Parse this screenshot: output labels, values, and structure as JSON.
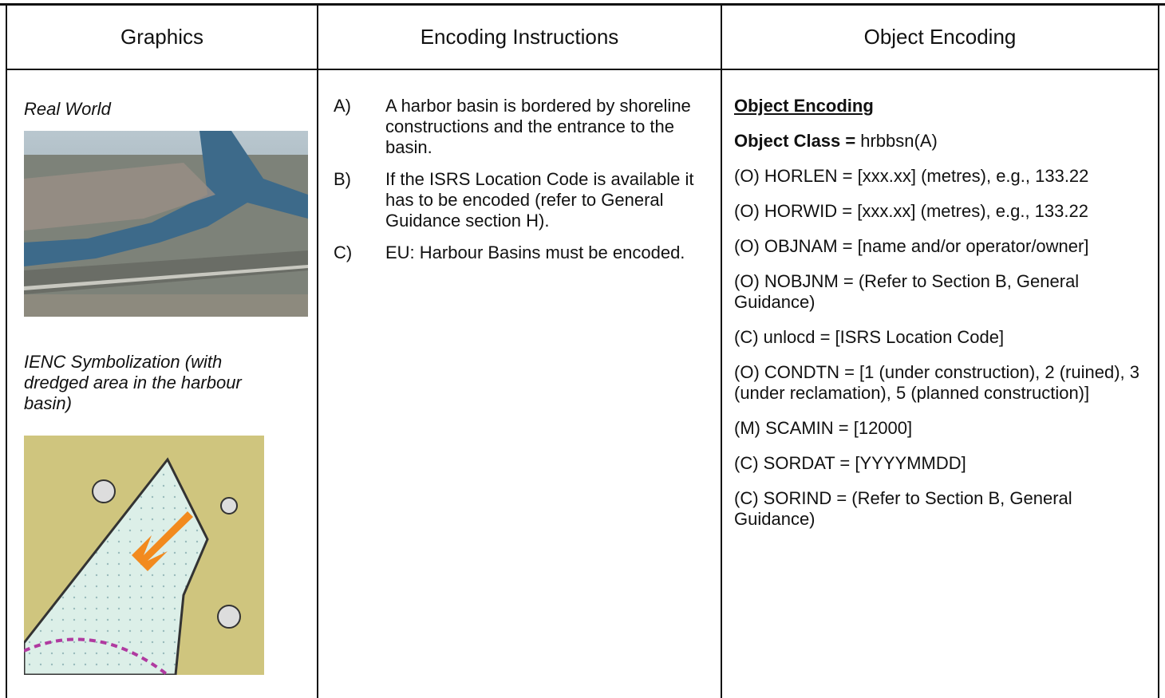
{
  "table": {
    "headers": [
      "Graphics",
      "Encoding Instructions",
      "Object Encoding"
    ],
    "graphics": {
      "caption_1": "Real World",
      "caption_2": "IENC Symbolization (with dredged area in the harbour basin)"
    },
    "instructions": [
      {
        "marker": "A)",
        "text": "A harbor basin is bordered by shoreline constructions and the entrance to the basin."
      },
      {
        "marker": "B)",
        "text": "If the ISRS Location Code is available it has to be encoded (refer to General Guidance section H)."
      },
      {
        "marker": "C)",
        "text": "EU: Harbour Basins must be encoded."
      }
    ],
    "encoding": {
      "heading": "Object Encoding",
      "object_class": {
        "label": "Object Class =",
        "value": "hrbbsn(A)"
      },
      "lines": [
        "(O) HORLEN = [xxx.xx] (metres), e.g., 133.22",
        "(O) HORWID = [xxx.xx] (metres), e.g., 133.22",
        "(O) OBJNAM = [name and/or operator/owner]",
        "(O) NOBJNM = (Refer to Section B, General Guidance)",
        "(C) unlocd = [ISRS Location Code]",
        "(O) CONDTN = [1 (under construction), 2 (ruined), 3 (under reclamation), 5 (planned construction)]",
        "(M) SCAMIN = [12000]",
        "(C) SORDAT = [YYYYMMDD]",
        "(C) SORIND = (Refer to Section B, General Guidance)"
      ]
    }
  }
}
